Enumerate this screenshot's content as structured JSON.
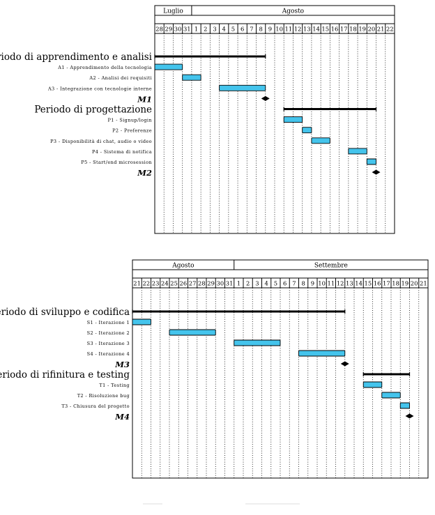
{
  "chart_data": [
    {
      "type": "gantt",
      "months": [
        {
          "label": "Luglio",
          "start_day": "28",
          "end_day": "31"
        },
        {
          "label": "Agosto",
          "start_day": "1",
          "end_day": "22"
        }
      ],
      "days": [
        "28",
        "29",
        "30",
        "31",
        "1",
        "2",
        "3",
        "4",
        "5",
        "6",
        "7",
        "8",
        "9",
        "10",
        "11",
        "12",
        "13",
        "14",
        "15",
        "16",
        "17",
        "18",
        "19",
        "20",
        "21",
        "22"
      ],
      "tasks": [
        {
          "kind": "group",
          "label": "Periodo di apprendimento e analisi",
          "start": "28",
          "end": "8"
        },
        {
          "kind": "task",
          "label": "A1 - Apprendimento della tecnologia",
          "start": "28",
          "end": "30"
        },
        {
          "kind": "task",
          "label": "A2 - Analisi dei requisiti",
          "start": "31",
          "end": "1"
        },
        {
          "kind": "task",
          "label": "A3 - Integrazione con tecnologie interne",
          "start": "4",
          "end": "8"
        },
        {
          "kind": "milestone",
          "label": "M1",
          "at": "9"
        },
        {
          "kind": "group",
          "label": "Periodo di progettazione",
          "start": "11",
          "end": "20"
        },
        {
          "kind": "task",
          "label": "P1 - Signup/login",
          "start": "11",
          "end": "12"
        },
        {
          "kind": "task",
          "label": "P2 - Preferenze",
          "start": "13",
          "end": "13"
        },
        {
          "kind": "task",
          "label": "P3 - Disponibilità di chat, audio o video",
          "start": "14",
          "end": "15"
        },
        {
          "kind": "task",
          "label": "P4 - Sistema di notifica",
          "start": "18",
          "end": "19"
        },
        {
          "kind": "task",
          "label": "P5 - Start/end microsession",
          "start": "20",
          "end": "20"
        },
        {
          "kind": "milestone",
          "label": "M2",
          "at": "21"
        }
      ]
    },
    {
      "type": "gantt",
      "months": [
        {
          "label": "Agosto",
          "start_day": "21",
          "end_day": "31"
        },
        {
          "label": "Settembre",
          "start_day": "1",
          "end_day": "21"
        }
      ],
      "days": [
        "21",
        "22",
        "23",
        "24",
        "25",
        "26",
        "27",
        "28",
        "29",
        "30",
        "31",
        "1",
        "2",
        "3",
        "4",
        "5",
        "6",
        "7",
        "8",
        "9",
        "10",
        "11",
        "12",
        "13",
        "14",
        "15",
        "16",
        "17",
        "18",
        "19",
        "20",
        "21"
      ],
      "tasks": [
        {
          "kind": "group",
          "label": "Periodo di sviluppo e codifica",
          "start": "21",
          "end": "12"
        },
        {
          "kind": "task",
          "label": "S1 - Iterazione 1",
          "start": "21",
          "end": "22"
        },
        {
          "kind": "task",
          "label": "S2 - Iterazione 2",
          "start": "25",
          "end": "29"
        },
        {
          "kind": "task",
          "label": "S3 - Iterazione 3",
          "start": "1",
          "end": "5"
        },
        {
          "kind": "task",
          "label": "S4 - Iterazione 4",
          "start": "8",
          "end": "12"
        },
        {
          "kind": "milestone",
          "label": "M3",
          "at": "13"
        },
        {
          "kind": "group",
          "label": "Periodo di rifinitura e testing",
          "start": "15",
          "end": "19"
        },
        {
          "kind": "task",
          "label": "T1 - Testing",
          "start": "15",
          "end": "16"
        },
        {
          "kind": "task",
          "label": "T2 - Risoluzione bug",
          "start": "17",
          "end": "18"
        },
        {
          "kind": "task",
          "label": "T3 - Chiusura del progetto",
          "start": "19",
          "end": "19"
        },
        {
          "kind": "milestone",
          "label": "M4",
          "at": "20"
        }
      ]
    }
  ],
  "colors": {
    "bar_fill": "#44c4ec",
    "bar_stroke": "#000000",
    "grid": "#000000",
    "background": "#ffffff"
  }
}
